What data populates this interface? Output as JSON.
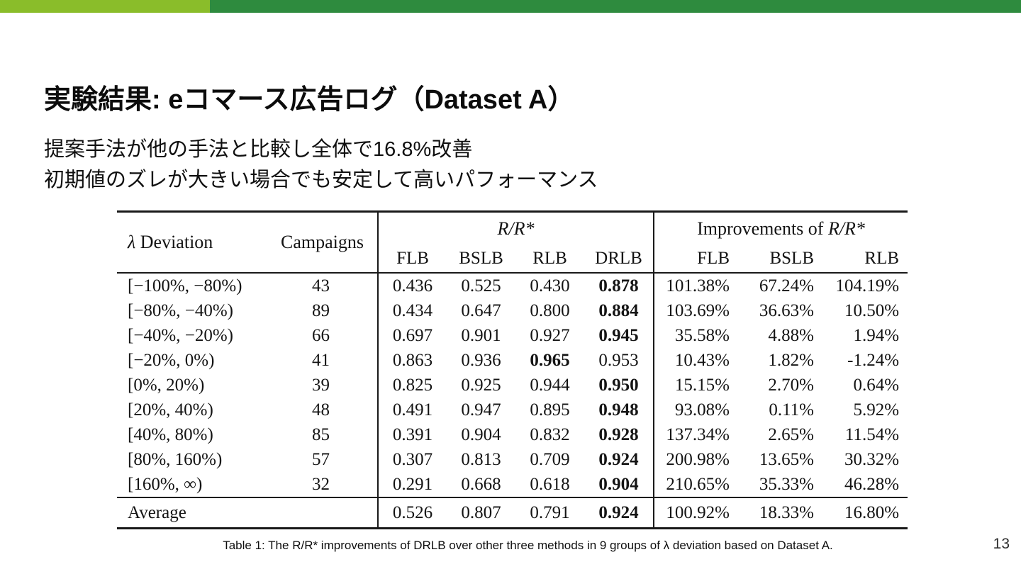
{
  "slide": {
    "title": "実験結果: eコマース広告ログ（Dataset A）",
    "body_lines": [
      "提案手法が他の手法と比較し全体で16.8%改善",
      "初期値のズレが大きい場合でも安定して高いパフォーマンス"
    ],
    "page_number": "13",
    "colors": {
      "bar_left": "#8abd2a",
      "bar_right": "#2e8b3e"
    }
  },
  "table": {
    "caption": "Table 1: The R/R* improvements of DRLB over other three methods in 9 groups of λ deviation based on Dataset A.",
    "header": {
      "lambda_symbol": "λ",
      "deviation_label": " Deviation",
      "campaigns": "Campaigns",
      "rr_group": "R/R*",
      "improvements_prefix": "Improvements of ",
      "improvements_rr": "R/R*",
      "rr_methods": [
        "FLB",
        "BSLB",
        "RLB",
        "DRLB"
      ],
      "improvement_methods": [
        "FLB",
        "BSLB",
        "RLB"
      ]
    },
    "rows": [
      {
        "range": "[−100%, −80%)",
        "campaigns": "43",
        "rr": [
          "0.436",
          "0.525",
          "0.430",
          "0.878"
        ],
        "rr_bold": 3,
        "improvements": [
          "101.38%",
          "67.24%",
          "104.19%"
        ]
      },
      {
        "range": "[−80%, −40%)",
        "campaigns": "89",
        "rr": [
          "0.434",
          "0.647",
          "0.800",
          "0.884"
        ],
        "rr_bold": 3,
        "improvements": [
          "103.69%",
          "36.63%",
          "10.50%"
        ]
      },
      {
        "range": "[−40%, −20%)",
        "campaigns": "66",
        "rr": [
          "0.697",
          "0.901",
          "0.927",
          "0.945"
        ],
        "rr_bold": 3,
        "improvements": [
          "35.58%",
          "4.88%",
          "1.94%"
        ]
      },
      {
        "range": "[−20%, 0%)",
        "campaigns": "41",
        "rr": [
          "0.863",
          "0.936",
          "0.965",
          "0.953"
        ],
        "rr_bold": 2,
        "improvements": [
          "10.43%",
          "1.82%",
          "-1.24%"
        ]
      },
      {
        "range": "[0%, 20%)",
        "campaigns": "39",
        "rr": [
          "0.825",
          "0.925",
          "0.944",
          "0.950"
        ],
        "rr_bold": 3,
        "improvements": [
          "15.15%",
          "2.70%",
          "0.64%"
        ]
      },
      {
        "range": "[20%, 40%)",
        "campaigns": "48",
        "rr": [
          "0.491",
          "0.947",
          "0.895",
          "0.948"
        ],
        "rr_bold": 3,
        "improvements": [
          "93.08%",
          "0.11%",
          "5.92%"
        ]
      },
      {
        "range": "[40%, 80%)",
        "campaigns": "85",
        "rr": [
          "0.391",
          "0.904",
          "0.832",
          "0.928"
        ],
        "rr_bold": 3,
        "improvements": [
          "137.34%",
          "2.65%",
          "11.54%"
        ]
      },
      {
        "range": "[80%, 160%)",
        "campaigns": "57",
        "rr": [
          "0.307",
          "0.813",
          "0.709",
          "0.924"
        ],
        "rr_bold": 3,
        "improvements": [
          "200.98%",
          "13.65%",
          "30.32%"
        ]
      },
      {
        "range": "[160%, ∞)",
        "campaigns": "32",
        "rr": [
          "0.291",
          "0.668",
          "0.618",
          "0.904"
        ],
        "rr_bold": 3,
        "improvements": [
          "210.65%",
          "35.33%",
          "46.28%"
        ]
      }
    ],
    "average_row": {
      "label": "Average",
      "campaigns": "",
      "rr": [
        "0.526",
        "0.807",
        "0.791",
        "0.924"
      ],
      "rr_bold": 3,
      "improvements": [
        "100.92%",
        "18.33%",
        "16.80%"
      ]
    }
  }
}
